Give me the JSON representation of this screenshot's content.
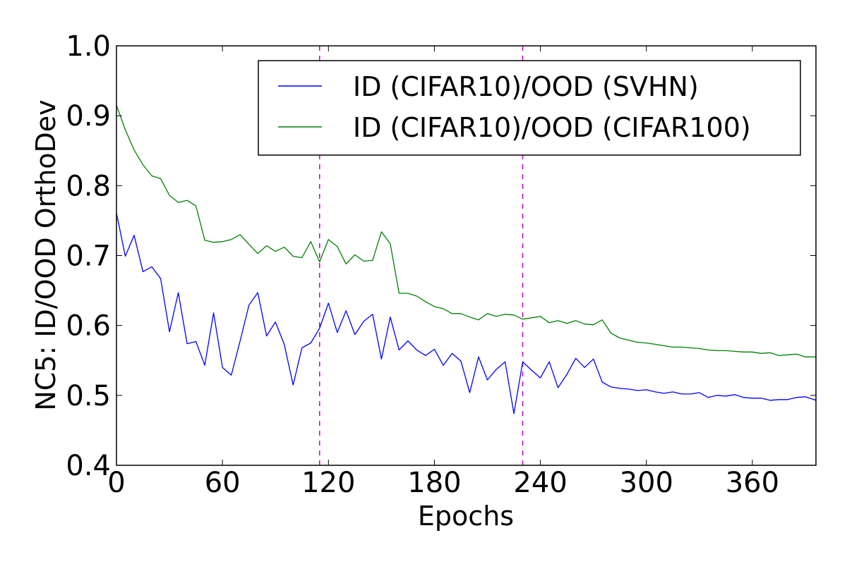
{
  "chart_data": {
    "type": "line",
    "title": "",
    "xlabel": "Epochs",
    "ylabel": "NC5: ID/OOD OrthoDev",
    "xlim": [
      0,
      396
    ],
    "ylim": [
      0.4,
      1.0
    ],
    "xticks": [
      "0",
      "60",
      "120",
      "180",
      "240",
      "300",
      "360"
    ],
    "yticks": [
      "0.4",
      "0.5",
      "0.6",
      "0.7",
      "0.8",
      "0.9",
      "1.0"
    ],
    "grid": false,
    "legend_position": "top-right",
    "vlines": {
      "x": [
        115,
        230
      ],
      "color": "#bf00bf",
      "style": "dashed"
    },
    "x": [
      0,
      5,
      10,
      15,
      20,
      25,
      30,
      35,
      40,
      45,
      50,
      55,
      60,
      65,
      70,
      75,
      80,
      85,
      90,
      95,
      100,
      105,
      110,
      115,
      120,
      125,
      130,
      135,
      140,
      145,
      150,
      155,
      160,
      165,
      170,
      175,
      180,
      185,
      190,
      195,
      200,
      205,
      210,
      215,
      220,
      225,
      230,
      235,
      240,
      245,
      250,
      255,
      260,
      265,
      270,
      275,
      280,
      285,
      290,
      295,
      300,
      305,
      310,
      315,
      320,
      325,
      330,
      335,
      340,
      345,
      350,
      355,
      360,
      365,
      370,
      375,
      380,
      385,
      390,
      396
    ],
    "series": [
      {
        "name": "ID (CIFAR10)/OOD (SVHN)",
        "color": "#0000ff",
        "values": [
          0.761,
          0.699,
          0.729,
          0.677,
          0.684,
          0.667,
          0.591,
          0.647,
          0.574,
          0.577,
          0.543,
          0.618,
          0.54,
          0.529,
          0.578,
          0.629,
          0.647,
          0.585,
          0.605,
          0.573,
          0.515,
          0.568,
          0.575,
          0.596,
          0.632,
          0.59,
          0.621,
          0.587,
          0.606,
          0.616,
          0.552,
          0.612,
          0.565,
          0.578,
          0.565,
          0.557,
          0.566,
          0.543,
          0.56,
          0.549,
          0.504,
          0.555,
          0.522,
          0.537,
          0.548,
          0.474,
          0.548,
          0.536,
          0.525,
          0.548,
          0.511,
          0.53,
          0.553,
          0.54,
          0.552,
          0.519,
          0.512,
          0.51,
          0.509,
          0.507,
          0.508,
          0.505,
          0.503,
          0.505,
          0.502,
          0.502,
          0.504,
          0.497,
          0.5,
          0.499,
          0.501,
          0.497,
          0.496,
          0.496,
          0.493,
          0.494,
          0.494,
          0.497,
          0.498,
          0.493
        ]
      },
      {
        "name": "ID (CIFAR10)/OOD (CIFAR100)",
        "color": "#008000",
        "values": [
          0.915,
          0.88,
          0.851,
          0.83,
          0.814,
          0.81,
          0.786,
          0.776,
          0.779,
          0.771,
          0.722,
          0.719,
          0.72,
          0.723,
          0.73,
          0.716,
          0.703,
          0.714,
          0.706,
          0.712,
          0.699,
          0.697,
          0.72,
          0.691,
          0.723,
          0.713,
          0.688,
          0.701,
          0.692,
          0.693,
          0.734,
          0.717,
          0.646,
          0.646,
          0.642,
          0.634,
          0.627,
          0.624,
          0.617,
          0.617,
          0.612,
          0.608,
          0.617,
          0.613,
          0.616,
          0.615,
          0.609,
          0.611,
          0.613,
          0.604,
          0.607,
          0.603,
          0.607,
          0.602,
          0.601,
          0.608,
          0.589,
          0.582,
          0.579,
          0.576,
          0.575,
          0.573,
          0.571,
          0.569,
          0.569,
          0.568,
          0.567,
          0.565,
          0.564,
          0.564,
          0.563,
          0.562,
          0.562,
          0.56,
          0.561,
          0.557,
          0.558,
          0.559,
          0.555,
          0.555
        ]
      }
    ]
  }
}
